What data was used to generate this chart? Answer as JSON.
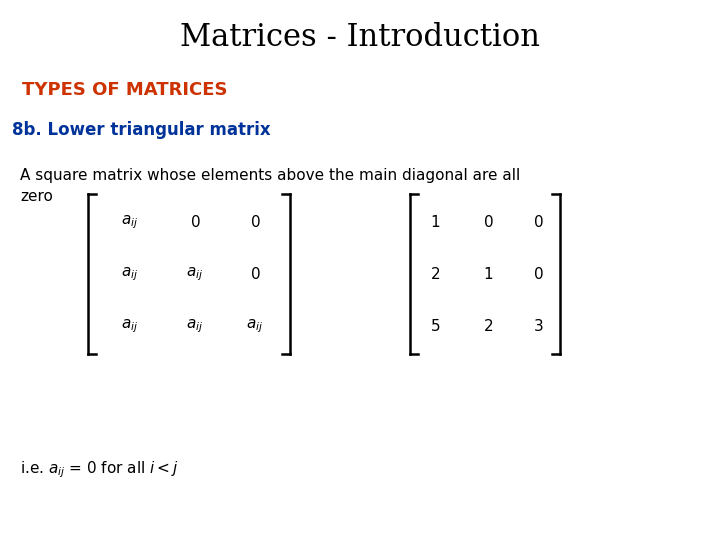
{
  "title": "Matrices - Introduction",
  "title_fontsize": 22,
  "title_color": "#000000",
  "types_label": "TYPES OF MATRICES",
  "types_color": "#CC3300",
  "types_fontsize": 13,
  "section_label": "8b. Lower triangular matrix",
  "section_color": "#003399",
  "section_fontsize": 12,
  "description": "A square matrix whose elements above the main diagonal are all\nzero",
  "desc_fontsize": 11,
  "desc_color": "#000000",
  "note_fontsize": 11,
  "note_color": "#000000",
  "background_color": "#ffffff",
  "numeric_matrix": [
    [
      "1",
      "0",
      "0"
    ],
    [
      "2",
      "1",
      "0"
    ],
    [
      "5",
      "2",
      "3"
    ]
  ]
}
